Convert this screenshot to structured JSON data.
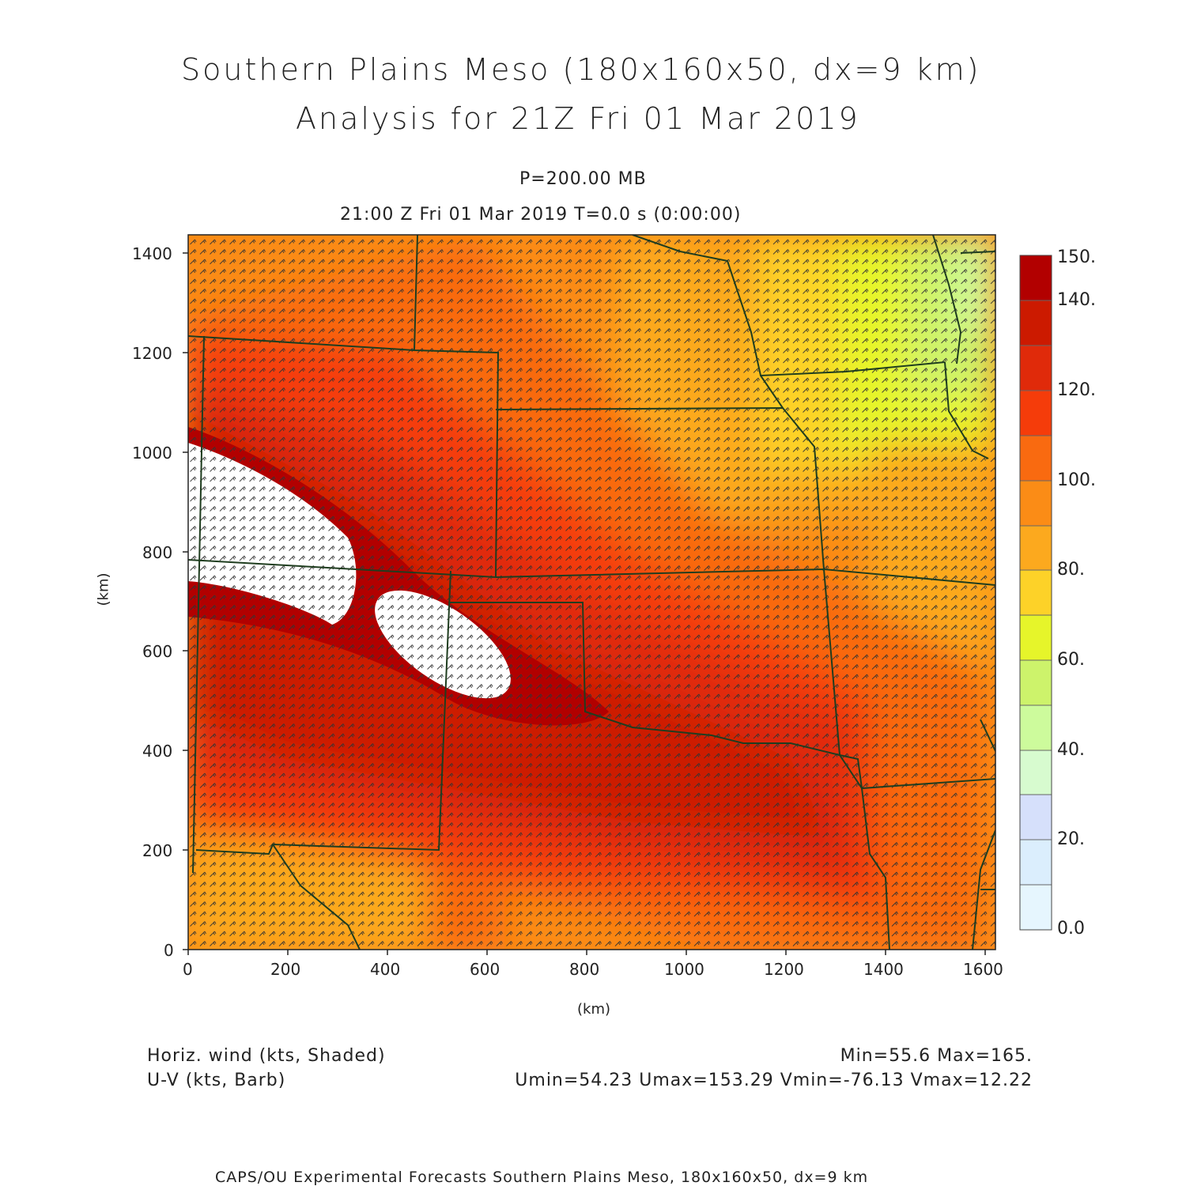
{
  "header": {
    "title_line1": "Southern Plains Meso (180x160x50, dx=9 km)",
    "title_line2": "Analysis for 21Z Fri 01 Mar 2019",
    "level": "P=200.00 MB",
    "valid_time": "21:00 Z Fri 01 Mar 2019    T=0.0 s (0:00:00)"
  },
  "plot": {
    "x_axis_label": "(km)",
    "y_axis_label": "(km)",
    "x_ticks": [
      "0",
      "200",
      "400",
      "600",
      "800",
      "1000",
      "1200",
      "1400",
      "1600"
    ],
    "y_ticks": [
      "0",
      "200",
      "400",
      "600",
      "800",
      "1000",
      "1200",
      "1400"
    ],
    "x_range_km": [
      0,
      1620
    ],
    "y_range_km": [
      0,
      1440
    ],
    "fields": [
      "Horizontal wind speed (shaded)",
      "U-V wind barbs"
    ],
    "colors": {
      "boundary": "#1f3d1f",
      "barb": "#333333"
    }
  },
  "colorbar": {
    "labels": [
      "150.",
      "140.",
      "120.",
      "100.",
      "80.",
      "60.",
      "40.",
      "20.",
      "0.0"
    ],
    "bins": [
      {
        "range": [
          140,
          150
        ],
        "color": "#b20000"
      },
      {
        "range": [
          130,
          140
        ],
        "color": "#cc1a00"
      },
      {
        "range": [
          120,
          130
        ],
        "color": "#e02a0a"
      },
      {
        "range": [
          110,
          120
        ],
        "color": "#f53c0a"
      },
      {
        "range": [
          100,
          110
        ],
        "color": "#f96a10"
      },
      {
        "range": [
          90,
          100
        ],
        "color": "#fb8c16"
      },
      {
        "range": [
          80,
          90
        ],
        "color": "#fca91e"
      },
      {
        "range": [
          70,
          80
        ],
        "color": "#fdd228"
      },
      {
        "range": [
          60,
          70
        ],
        "color": "#e6f52a"
      },
      {
        "range": [
          50,
          60
        ],
        "color": "#cdf36b"
      },
      {
        "range": [
          40,
          50
        ],
        "color": "#cdfb9c"
      },
      {
        "range": [
          30,
          40
        ],
        "color": "#d7fbcf"
      },
      {
        "range": [
          20,
          30
        ],
        "color": "#d6e0fb"
      },
      {
        "range": [
          10,
          20
        ],
        "color": "#dbeefd"
      },
      {
        "range": [
          0,
          10
        ],
        "color": "#e6f6fe"
      }
    ]
  },
  "footer": {
    "shaded_field": "Horiz. wind (kts, Shaded)",
    "barb_field": "U-V (kts, Barb)",
    "minmax": "Min=55.6 Max=165.",
    "uv_stats": "Umin=54.23 Umax=153.29 Vmin=-76.13 Vmax=12.22",
    "credit": "CAPS/OU Experimental Forecasts  Southern Plains Meso, 180x160x50, dx=9 km"
  }
}
